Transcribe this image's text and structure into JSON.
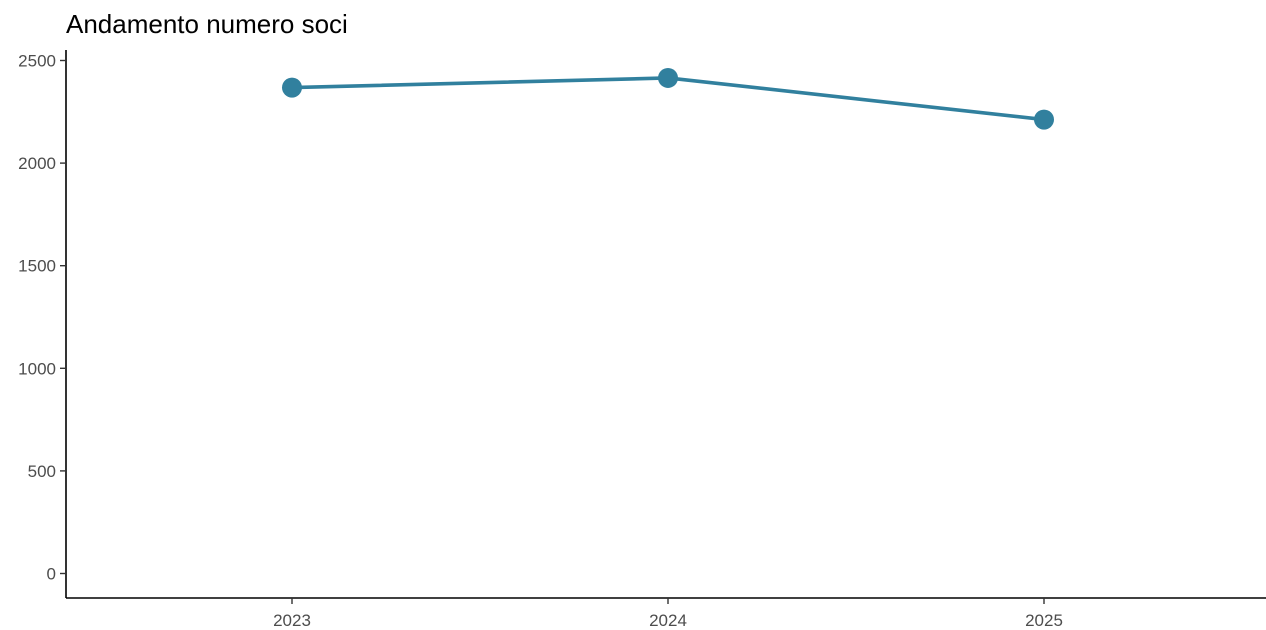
{
  "chart_data": {
    "type": "line",
    "title": "Andamento numero soci",
    "xlabel": "",
    "ylabel": "",
    "categories": [
      "2023",
      "2024",
      "2025"
    ],
    "series": [
      {
        "values": [
          2368,
          2415,
          2212
        ],
        "color": "#31809e"
      }
    ],
    "ylim": [
      0,
      2500
    ],
    "yticks": [
      0,
      500,
      1000,
      1500,
      2000,
      2500
    ],
    "grid": false,
    "legend": "none"
  }
}
